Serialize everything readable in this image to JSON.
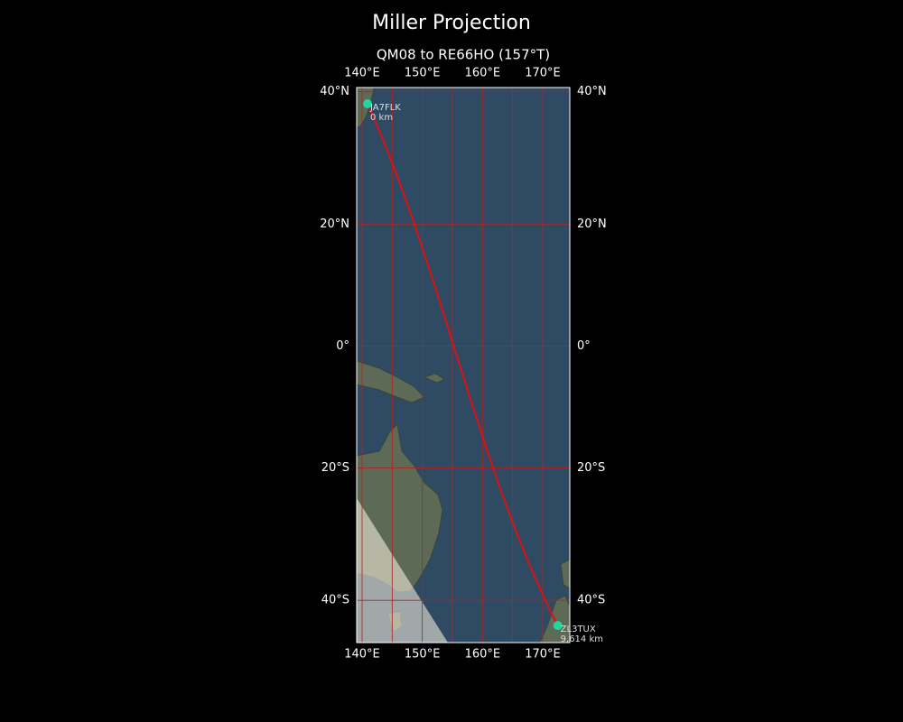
{
  "map": {
    "title": "Miller Projection",
    "subtitle": "QM08 to RE66HO (157°T)",
    "projection": "miller",
    "xlim": [
      139.1,
      174.5
    ],
    "ylim": [
      -45.8,
      40.6
    ],
    "lon_ticks": [
      {
        "value": 140,
        "label": "140°E"
      },
      {
        "value": 150,
        "label": "150°E"
      },
      {
        "value": 160,
        "label": "160°E"
      },
      {
        "value": 170,
        "label": "170°E"
      }
    ],
    "lat_ticks": [
      {
        "value": 40,
        "label": "40°N"
      },
      {
        "value": 20,
        "label": "20°N"
      },
      {
        "value": 0,
        "label": "0°"
      },
      {
        "value": -20,
        "label": "20°S"
      },
      {
        "value": -40,
        "label": "40°S"
      }
    ],
    "lon_grid": [
      140,
      145,
      150,
      155,
      160,
      165,
      170
    ],
    "grid_color": "#b22222",
    "path_color": "#e01010",
    "station_color": "#1fd6a0",
    "stations": [
      {
        "call": "JA7FLK",
        "distance": "0 km",
        "lat": 38.3,
        "lon": 140.9
      },
      {
        "call": "ZL3TUX",
        "distance": "9,614 km",
        "lat": -43.5,
        "lon": 172.5
      }
    ]
  }
}
